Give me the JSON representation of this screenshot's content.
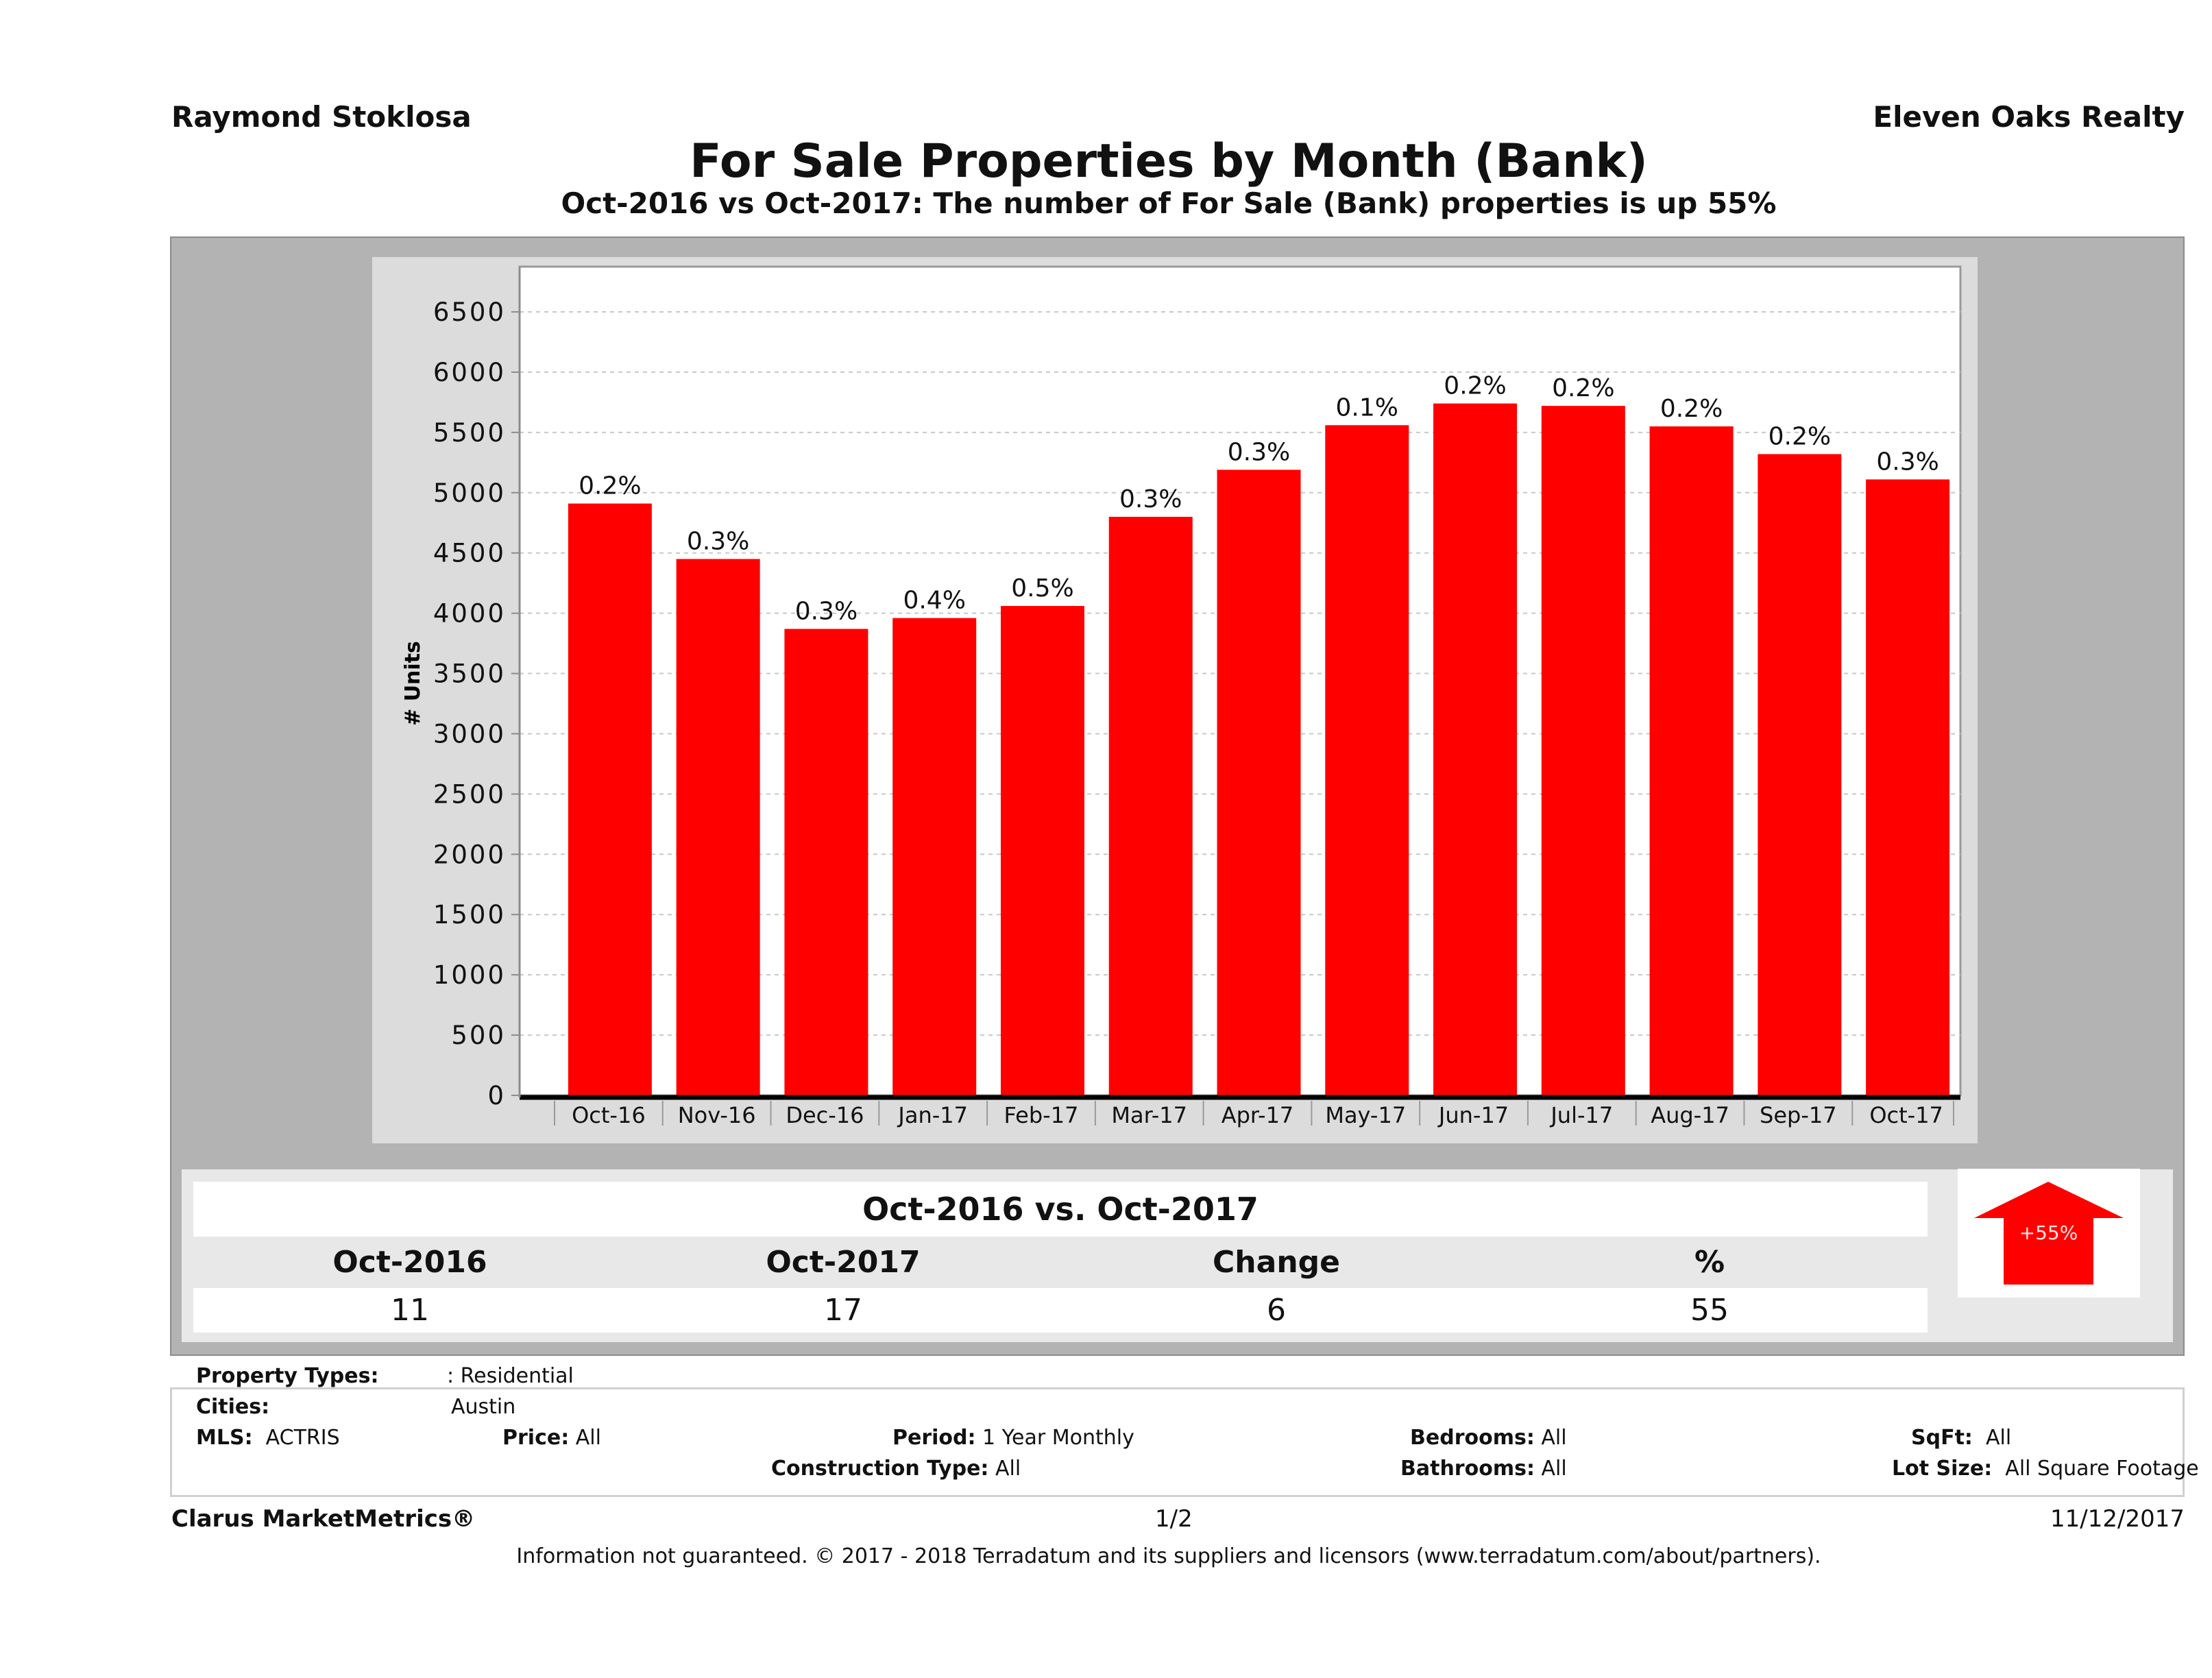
{
  "header": {
    "agent_name": "Raymond Stoklosa",
    "brokerage": "Eleven Oaks Realty",
    "title": "For Sale Properties by Month (Bank)",
    "subtitle": "Oct-2016 vs Oct-2017: The number of For Sale (Bank)  properties is up 55%"
  },
  "chart_data": {
    "type": "bar",
    "title": "For Sale Properties by Month (Bank)",
    "xlabel": "",
    "ylabel": "# Units",
    "ylim": [
      0,
      6500
    ],
    "yticks": [
      0,
      500,
      1000,
      1500,
      2000,
      2500,
      3000,
      3500,
      4000,
      4500,
      5000,
      5500,
      6000,
      6500
    ],
    "grid": true,
    "bar_color": "#ff0000",
    "categories": [
      "Oct-16",
      "Nov-16",
      "Dec-16",
      "Jan-17",
      "Feb-17",
      "Mar-17",
      "Apr-17",
      "May-17",
      "Jun-17",
      "Jul-17",
      "Aug-17",
      "Sep-17",
      "Oct-17"
    ],
    "values": [
      4910,
      4450,
      3870,
      3960,
      4060,
      4800,
      5190,
      5560,
      5740,
      5720,
      5550,
      5320,
      5110
    ],
    "data_labels": [
      "0.2%",
      "0.3%",
      "0.3%",
      "0.4%",
      "0.5%",
      "0.3%",
      "0.3%",
      "0.1%",
      "0.2%",
      "0.2%",
      "0.2%",
      "0.2%",
      "0.3%"
    ]
  },
  "comparison": {
    "title": "Oct-2016 vs. Oct-2017",
    "headers": [
      "Oct-2016",
      "Oct-2017",
      "Change",
      "%"
    ],
    "values": [
      "11",
      "17",
      "6",
      "55"
    ],
    "badge": "+55%",
    "direction": "up",
    "badge_color": "#ff0000"
  },
  "filters": {
    "property_types_label": "Property Types:",
    "property_types_value": ": Residential",
    "cities_label": "Cities:",
    "cities_value": "Austin",
    "mls_label": "MLS:",
    "mls_value": "ACTRIS",
    "price_label": "Price:",
    "price_value": "All",
    "period_label": "Period:",
    "period_value": "1 Year Monthly",
    "construction_label": "Construction Type:",
    "construction_value": "All",
    "bedrooms_label": "Bedrooms:",
    "bedrooms_value": "All",
    "bathrooms_label": "Bathrooms:",
    "bathrooms_value": "All",
    "sqft_label": "SqFt:",
    "sqft_value": "All",
    "lotsize_label": "Lot Size:",
    "lotsize_value": "All Square Footage"
  },
  "footer": {
    "product": "Clarus MarketMetrics®",
    "page": "1/2",
    "date": "11/12/2017",
    "disclaimer": "Information not guaranteed. © 2017 - 2018 Terradatum and its suppliers and licensors (www.terradatum.com/about/partners)."
  }
}
